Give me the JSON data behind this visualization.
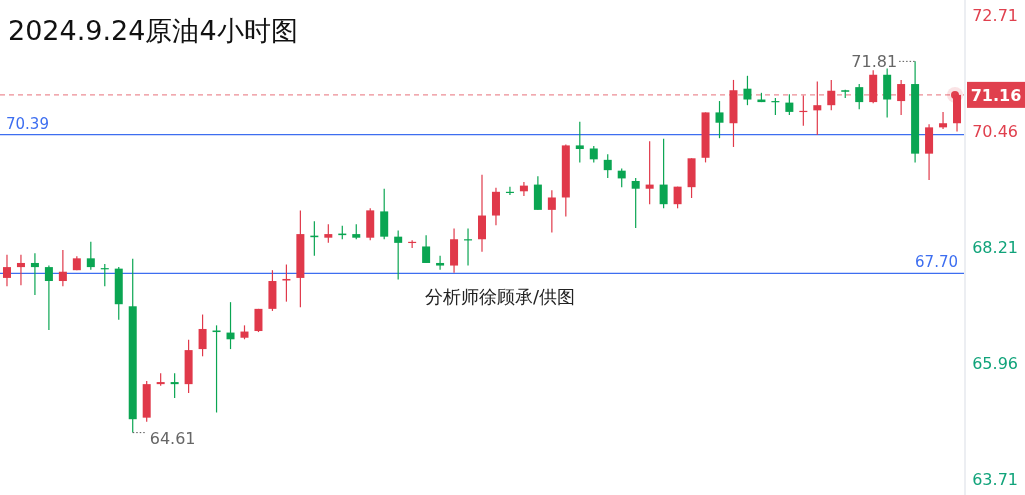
{
  "chart_data": {
    "type": "candlestick",
    "title": "2024.9.24原油4小时图",
    "categories": [
      null,
      null,
      null,
      null,
      null,
      null,
      null,
      null,
      null,
      null,
      null,
      null,
      null,
      null,
      null,
      null,
      null,
      null,
      null,
      null,
      null,
      null,
      null,
      null,
      null,
      null,
      null,
      null,
      null,
      null,
      null,
      null,
      null,
      null,
      null,
      null,
      null,
      null,
      null,
      null,
      null,
      null,
      null,
      null,
      null,
      null,
      null,
      null,
      null,
      null,
      null,
      null,
      null,
      null,
      null,
      null,
      null,
      null,
      null,
      null,
      null,
      null,
      null,
      null,
      null,
      null,
      null,
      null,
      null
    ],
    "ohlc": [
      [
        67.61,
        68.06,
        67.45,
        67.82
      ],
      [
        67.82,
        68.06,
        67.47,
        67.9
      ],
      [
        67.9,
        68.09,
        67.28,
        67.82
      ],
      [
        67.82,
        67.85,
        66.6,
        67.55
      ],
      [
        67.55,
        68.15,
        67.45,
        67.73
      ],
      [
        67.76,
        68.03,
        67.76,
        67.99
      ],
      [
        67.99,
        68.31,
        67.77,
        67.82
      ],
      [
        67.8,
        67.88,
        67.45,
        67.78
      ],
      [
        67.79,
        67.82,
        66.8,
        67.1
      ],
      [
        67.06,
        67.98,
        64.61,
        64.87
      ],
      [
        64.9,
        65.61,
        64.82,
        65.55
      ],
      [
        65.55,
        65.76,
        65.52,
        65.59
      ],
      [
        65.59,
        65.76,
        65.28,
        65.55
      ],
      [
        65.55,
        66.41,
        65.38,
        66.21
      ],
      [
        66.23,
        66.9,
        66.09,
        66.62
      ],
      [
        66.59,
        66.69,
        65.0,
        66.56
      ],
      [
        66.55,
        67.14,
        66.23,
        66.42
      ],
      [
        66.45,
        66.69,
        66.42,
        66.57
      ],
      [
        66.58,
        67.01,
        66.56,
        67.01
      ],
      [
        67.01,
        67.76,
        66.97,
        67.55
      ],
      [
        67.56,
        67.87,
        67.15,
        67.59
      ],
      [
        67.61,
        68.92,
        67.04,
        68.46
      ],
      [
        68.43,
        68.71,
        68.04,
        68.4
      ],
      [
        68.39,
        68.65,
        68.29,
        68.46
      ],
      [
        68.47,
        68.62,
        68.36,
        68.44
      ],
      [
        68.46,
        68.65,
        68.36,
        68.39
      ],
      [
        68.39,
        68.96,
        68.34,
        68.92
      ],
      [
        68.9,
        69.34,
        68.36,
        68.41
      ],
      [
        68.41,
        68.53,
        67.58,
        68.29
      ],
      [
        68.29,
        68.34,
        68.19,
        68.31
      ],
      [
        68.22,
        68.44,
        67.9,
        67.9
      ],
      [
        67.9,
        68.04,
        67.77,
        67.85
      ],
      [
        67.85,
        68.57,
        67.71,
        68.36
      ],
      [
        68.36,
        68.57,
        67.85,
        68.34
      ],
      [
        68.36,
        69.61,
        68.12,
        68.82
      ],
      [
        68.82,
        69.36,
        68.63,
        69.28
      ],
      [
        69.28,
        69.38,
        69.22,
        69.27
      ],
      [
        69.29,
        69.47,
        69.2,
        69.4
      ],
      [
        69.42,
        69.58,
        68.93,
        68.93
      ],
      [
        68.93,
        69.31,
        68.49,
        69.17
      ],
      [
        69.17,
        70.2,
        68.8,
        70.18
      ],
      [
        70.18,
        70.64,
        69.85,
        70.11
      ],
      [
        70.12,
        70.17,
        69.85,
        69.91
      ],
      [
        69.9,
        70.01,
        69.55,
        69.7
      ],
      [
        69.69,
        69.73,
        69.37,
        69.54
      ],
      [
        69.49,
        69.55,
        68.58,
        69.34
      ],
      [
        69.34,
        70.26,
        69.04,
        69.42
      ],
      [
        69.42,
        70.31,
        68.96,
        69.04
      ],
      [
        69.04,
        69.38,
        68.96,
        69.38
      ],
      [
        69.37,
        69.93,
        69.16,
        69.93
      ],
      [
        69.94,
        70.82,
        69.85,
        70.82
      ],
      [
        70.82,
        71.04,
        70.32,
        70.62
      ],
      [
        70.61,
        71.45,
        70.15,
        71.25
      ],
      [
        71.28,
        71.53,
        70.96,
        71.07
      ],
      [
        71.07,
        71.2,
        71.02,
        71.02
      ],
      [
        71.04,
        71.1,
        70.77,
        71.02
      ],
      [
        71.01,
        71.17,
        70.77,
        70.83
      ],
      [
        70.83,
        71.15,
        70.56,
        70.85
      ],
      [
        70.86,
        71.42,
        70.38,
        70.96
      ],
      [
        70.96,
        71.45,
        70.86,
        71.24
      ],
      [
        71.25,
        71.26,
        71.1,
        71.22
      ],
      [
        71.31,
        71.37,
        70.88,
        71.02
      ],
      [
        71.02,
        71.64,
        71.0,
        71.55
      ],
      [
        71.55,
        71.67,
        70.72,
        71.07
      ],
      [
        71.04,
        71.45,
        70.77,
        71.37
      ],
      [
        71.37,
        71.81,
        69.85,
        70.02
      ],
      [
        70.02,
        70.59,
        69.51,
        70.53
      ],
      [
        70.53,
        70.83,
        70.5,
        70.61
      ],
      [
        70.61,
        71.2,
        70.45,
        71.16
      ]
    ],
    "ylim": [
      63.4,
      73.0
    ],
    "yticks": [
      72.71,
      70.46,
      68.21,
      65.96,
      63.71
    ],
    "tick_labels": "y",
    "ref_lines": [
      {
        "axis": "y",
        "value": 70.39,
        "label": "70.39",
        "color": "#3d6ef0",
        "line_style": "solid"
      },
      {
        "axis": "y",
        "value": 67.7,
        "label": "67.70",
        "color": "#3d6ef0",
        "line_style": "solid"
      },
      {
        "axis": "y",
        "value": 71.16,
        "label": "71.16",
        "color": "#e0404e",
        "line_style": "dashed"
      }
    ],
    "annotations": [
      "71.81",
      "64.61",
      "分析师徐顾承/供图"
    ]
  }
}
